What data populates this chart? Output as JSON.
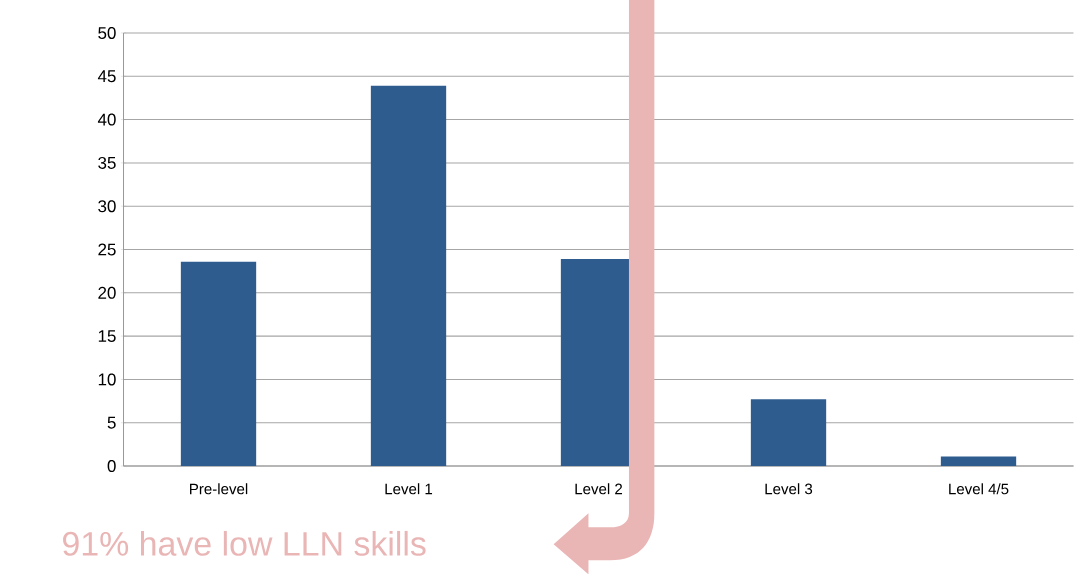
{
  "chart_data": {
    "type": "bar",
    "categories": [
      "Pre-level",
      "Level 1",
      "Level 2",
      "Level 3",
      "Level 4/5"
    ],
    "values": [
      23.6,
      43.9,
      23.9,
      7.7,
      1.1
    ],
    "color": "#2f5c8f",
    "ylim": [
      0,
      50
    ],
    "yticks": [
      0,
      5,
      10,
      15,
      20,
      25,
      30,
      35,
      40,
      45,
      50
    ],
    "grid": "y",
    "annotations": [
      "91% have low LLN skills"
    ]
  }
}
